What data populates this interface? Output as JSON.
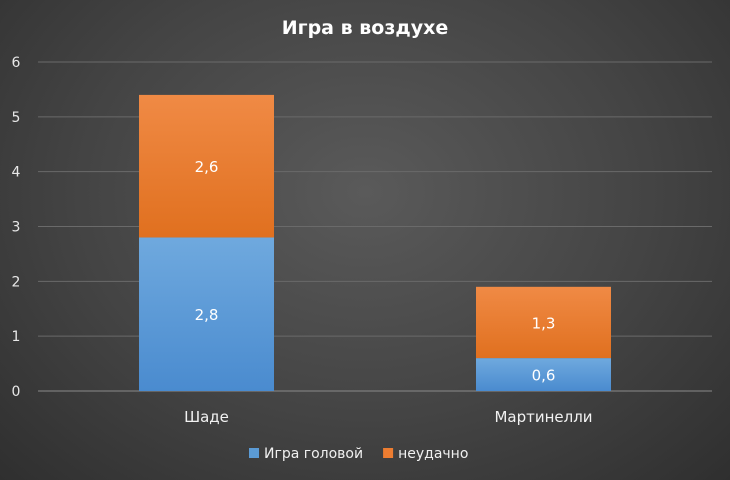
{
  "chart_data": {
    "type": "bar",
    "stacked": true,
    "title": "Игра в воздухе",
    "categories": [
      "Шаде",
      "Мартинелли"
    ],
    "series": [
      {
        "name": "Игра головой",
        "values": [
          2.8,
          0.6
        ],
        "labels": [
          "2,8",
          "0,6"
        ],
        "color": "#5b9bd5"
      },
      {
        "name": "неудачно",
        "values": [
          2.6,
          1.3
        ],
        "labels": [
          "2,6",
          "1,3"
        ],
        "color": "#ed7d31"
      }
    ],
    "ylim": [
      0,
      6
    ],
    "yticks": [
      "0",
      "1",
      "2",
      "3",
      "4",
      "5",
      "6"
    ],
    "grid": true,
    "legend_position": "bottom",
    "colors": {
      "background": "#404040",
      "grid": "#6a6a6a",
      "text": "#ffffff"
    }
  }
}
